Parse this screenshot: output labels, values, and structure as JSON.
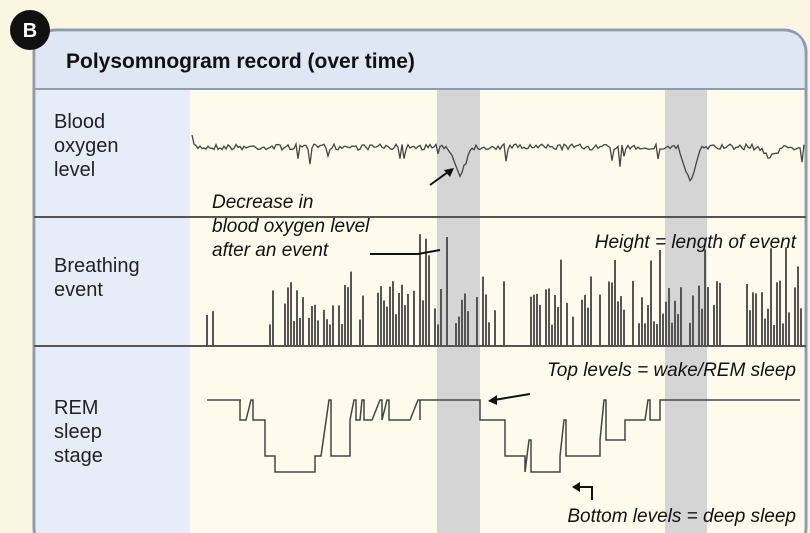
{
  "badge": "B",
  "header": {
    "title": "Polysomnogram record (over time)"
  },
  "rows": [
    {
      "label": [
        "Blood",
        "oxygen",
        "level"
      ]
    },
    {
      "label": [
        "Breathing",
        "event"
      ]
    },
    {
      "label": [
        "REM",
        "sleep",
        "stage"
      ]
    }
  ],
  "annotations": [
    {
      "text": [
        "Decrease in",
        "blood oxygen level",
        "after an event"
      ]
    },
    {
      "text": [
        "Height = length of event"
      ]
    },
    {
      "text": [
        "Top levels = wake/REM sleep"
      ]
    },
    {
      "text": [
        "Bottom levels = deep sleep"
      ]
    }
  ]
}
